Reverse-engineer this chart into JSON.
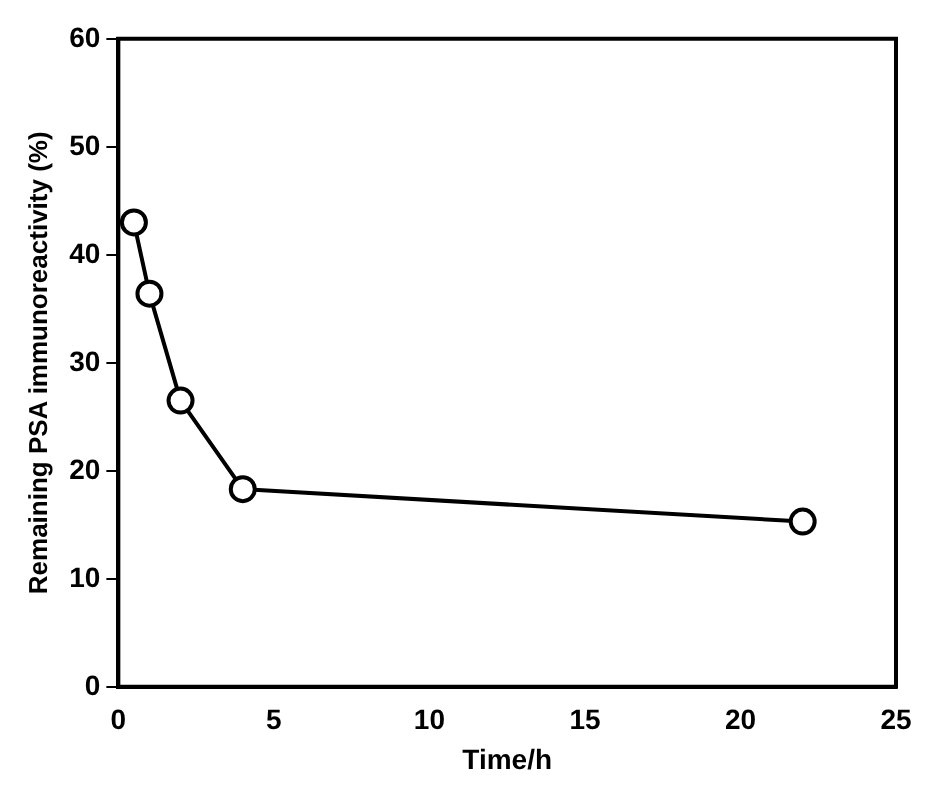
{
  "chart_data": {
    "type": "line",
    "xlabel": "Time/h",
    "ylabel": "Remaining PSA immunoreactivity (%)",
    "x": [
      0.5,
      1,
      2,
      4,
      22
    ],
    "series": [
      {
        "color": "#000000",
        "values": [
          43,
          36.4,
          26.5,
          18.3,
          15.3
        ]
      }
    ],
    "xlim": [
      0,
      25
    ],
    "xticks": [
      0,
      5,
      10,
      15,
      20,
      25
    ],
    "ylim": [
      0,
      60
    ],
    "yticks": [
      0,
      10,
      20,
      30,
      40,
      50,
      60
    ],
    "marker": "circle",
    "line_style": "solid",
    "grid": false,
    "legend": false
  }
}
